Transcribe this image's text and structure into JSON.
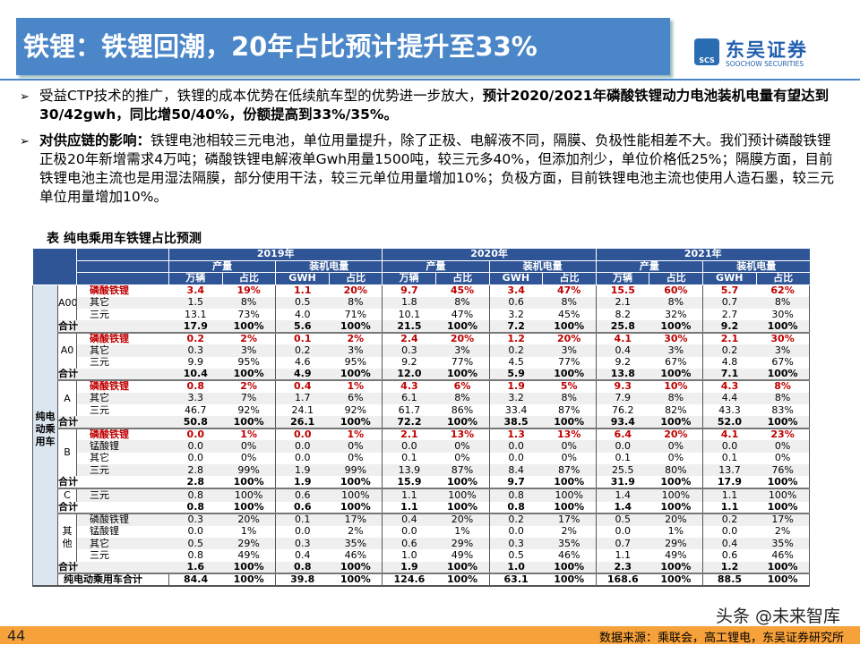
{
  "title": "铁锂：铁锂回潮，20年占比预计提升至33%",
  "logo": {
    "cn": "东吴证券",
    "en": "SOOCHOW SECURITIES",
    "mark": "SCS"
  },
  "bullets": [
    {
      "plain": "受益CTP技术的推广，铁锂的成本优势在低续航车型的优势进一步放大，",
      "bold": "预计2020/2021年磷酸铁锂动力电池装机电量有望达到30/42gwh，同比增50/40%，份额提高到33%/35%。",
      "rest": ""
    },
    {
      "plain": "",
      "bold": "对供应链的影响：",
      "rest": "铁锂电池相较三元电池，单位用量提升，除了正极、电解液不同，隔膜、负极性能相差不大。我们预计磷酸铁锂正极20年新增需求4万吨；磷酸铁锂电解液单Gwh用量1500吨，较三元多40%，但添加剂少，单位价格低25%；隔膜方面，目前铁锂电池主流也是用湿法隔膜，部分使用干法，较三元单位用量增加10%；负极方面，目前铁锂电池主流也使用人造石墨，较三元单位用量增加10%。"
    }
  ],
  "table": {
    "caption": "表 纯电乘用车铁锂占比预测",
    "years": [
      "2019年",
      "2020年",
      "2021年"
    ],
    "metrics": [
      "产量",
      "装机电量"
    ],
    "units": [
      "万辆",
      "占比",
      "GWH",
      "占比"
    ],
    "group": "纯电动乘用车",
    "segments": [
      {
        "name": "A00",
        "rows": [
          {
            "label": "磷酸铁锂",
            "type": "lfp",
            "v": [
              "3.4",
              "19%",
              "1.1",
              "20%",
              "9.7",
              "45%",
              "3.4",
              "47%",
              "15.5",
              "60%",
              "5.7",
              "62%"
            ]
          },
          {
            "label": "其它",
            "type": "n",
            "v": [
              "1.5",
              "8%",
              "0.5",
              "8%",
              "1.8",
              "8%",
              "0.6",
              "8%",
              "2.1",
              "8%",
              "0.7",
              "8%"
            ]
          },
          {
            "label": "三元",
            "type": "n",
            "v": [
              "13.1",
              "73%",
              "4.0",
              "71%",
              "10.1",
              "47%",
              "3.2",
              "45%",
              "8.2",
              "32%",
              "2.7",
              "30%"
            ]
          },
          {
            "label": "合计",
            "type": "tot",
            "v": [
              "17.9",
              "100%",
              "5.6",
              "100%",
              "21.5",
              "100%",
              "7.2",
              "100%",
              "25.8",
              "100%",
              "9.2",
              "100%"
            ]
          }
        ]
      },
      {
        "name": "A0",
        "rows": [
          {
            "label": "磷酸铁锂",
            "type": "lfp",
            "v": [
              "0.2",
              "2%",
              "0.1",
              "2%",
              "2.4",
              "20%",
              "1.2",
              "20%",
              "4.1",
              "30%",
              "2.1",
              "30%"
            ]
          },
          {
            "label": "其它",
            "type": "n",
            "v": [
              "0.3",
              "3%",
              "0.2",
              "3%",
              "0.3",
              "3%",
              "0.2",
              "3%",
              "0.4",
              "3%",
              "0.2",
              "3%"
            ]
          },
          {
            "label": "三元",
            "type": "n",
            "v": [
              "9.9",
              "95%",
              "4.6",
              "95%",
              "9.2",
              "77%",
              "4.5",
              "77%",
              "9.2",
              "67%",
              "4.8",
              "67%"
            ]
          },
          {
            "label": "合计",
            "type": "tot",
            "v": [
              "10.4",
              "100%",
              "4.9",
              "100%",
              "12.0",
              "100%",
              "5.9",
              "100%",
              "13.8",
              "100%",
              "7.1",
              "100%"
            ]
          }
        ]
      },
      {
        "name": "A",
        "rows": [
          {
            "label": "磷酸铁锂",
            "type": "lfp",
            "v": [
              "0.8",
              "2%",
              "0.4",
              "1%",
              "4.3",
              "6%",
              "1.9",
              "5%",
              "9.3",
              "10%",
              "4.3",
              "8%"
            ]
          },
          {
            "label": "其它",
            "type": "n",
            "v": [
              "3.3",
              "7%",
              "1.7",
              "6%",
              "6.1",
              "8%",
              "3.2",
              "8%",
              "7.9",
              "8%",
              "4.4",
              "8%"
            ]
          },
          {
            "label": "三元",
            "type": "n",
            "v": [
              "46.7",
              "92%",
              "24.1",
              "92%",
              "61.7",
              "86%",
              "33.4",
              "87%",
              "76.2",
              "82%",
              "43.3",
              "83%"
            ]
          },
          {
            "label": "合计",
            "type": "tot",
            "v": [
              "50.8",
              "100%",
              "26.1",
              "100%",
              "72.2",
              "100%",
              "38.5",
              "100%",
              "93.4",
              "100%",
              "52.0",
              "100%"
            ]
          }
        ]
      },
      {
        "name": "B",
        "rows": [
          {
            "label": "磷酸铁锂",
            "type": "lfp",
            "v": [
              "0.0",
              "1%",
              "0.0",
              "1%",
              "2.1",
              "13%",
              "1.3",
              "13%",
              "6.4",
              "20%",
              "4.1",
              "23%"
            ]
          },
          {
            "label": "锰酸锂",
            "type": "n",
            "v": [
              "0.0",
              "0%",
              "0.0",
              "0%",
              "0.0",
              "0%",
              "0.0",
              "0%",
              "0.0",
              "0%",
              "0.0",
              "0%"
            ]
          },
          {
            "label": "其它",
            "type": "n",
            "v": [
              "0.0",
              "0%",
              "0.0",
              "0%",
              "0.1",
              "0%",
              "0.0",
              "0%",
              "0.1",
              "0%",
              "0.1",
              "0%"
            ]
          },
          {
            "label": "三元",
            "type": "n",
            "v": [
              "2.8",
              "99%",
              "1.9",
              "99%",
              "13.9",
              "87%",
              "8.4",
              "87%",
              "25.5",
              "80%",
              "13.7",
              "76%"
            ]
          },
          {
            "label": "合计",
            "type": "tot",
            "v": [
              "2.8",
              "100%",
              "1.9",
              "100%",
              "15.9",
              "100%",
              "9.7",
              "100%",
              "31.9",
              "100%",
              "17.9",
              "100%"
            ]
          }
        ]
      },
      {
        "name": "C",
        "rows": [
          {
            "label": "三元",
            "type": "n",
            "v": [
              "0.8",
              "100%",
              "0.6",
              "100%",
              "1.1",
              "100%",
              "0.8",
              "100%",
              "1.4",
              "100%",
              "1.1",
              "100%"
            ]
          },
          {
            "label": "合计",
            "type": "tot",
            "v": [
              "0.8",
              "100%",
              "0.6",
              "100%",
              "1.1",
              "100%",
              "0.8",
              "100%",
              "1.4",
              "100%",
              "1.1",
              "100%"
            ]
          }
        ]
      },
      {
        "name": "其他",
        "rows": [
          {
            "label": "磷酸铁锂",
            "type": "n",
            "v": [
              "0.3",
              "20%",
              "0.1",
              "17%",
              "0.4",
              "20%",
              "0.2",
              "17%",
              "0.5",
              "20%",
              "0.2",
              "17%"
            ]
          },
          {
            "label": "锰酸锂",
            "type": "n",
            "v": [
              "0.0",
              "1%",
              "0.0",
              "2%",
              "0.0",
              "1%",
              "0.0",
              "2%",
              "0.0",
              "1%",
              "0.0",
              "2%"
            ]
          },
          {
            "label": "其它",
            "type": "n",
            "v": [
              "0.5",
              "29%",
              "0.3",
              "35%",
              "0.6",
              "29%",
              "0.3",
              "35%",
              "0.7",
              "29%",
              "0.4",
              "35%"
            ]
          },
          {
            "label": "三元",
            "type": "n",
            "v": [
              "0.8",
              "49%",
              "0.4",
              "46%",
              "1.0",
              "49%",
              "0.5",
              "46%",
              "1.1",
              "49%",
              "0.6",
              "46%"
            ]
          },
          {
            "label": "合计",
            "type": "tot",
            "v": [
              "1.6",
              "100%",
              "0.8",
              "100%",
              "1.9",
              "100%",
              "1.0",
              "100%",
              "2.3",
              "100%",
              "1.2",
              "100%"
            ]
          }
        ]
      }
    ],
    "grand_total": {
      "label": "纯电动乘用车合计",
      "v": [
        "84.4",
        "100%",
        "39.8",
        "100%",
        "124.6",
        "100%",
        "63.1",
        "100%",
        "168.6",
        "100%",
        "88.5",
        "100%"
      ]
    }
  },
  "watermark": "头条 @未来智库",
  "footer": {
    "page": "44",
    "source": "数据来源：乘联会，高工锂电，东吴证券研究所"
  }
}
